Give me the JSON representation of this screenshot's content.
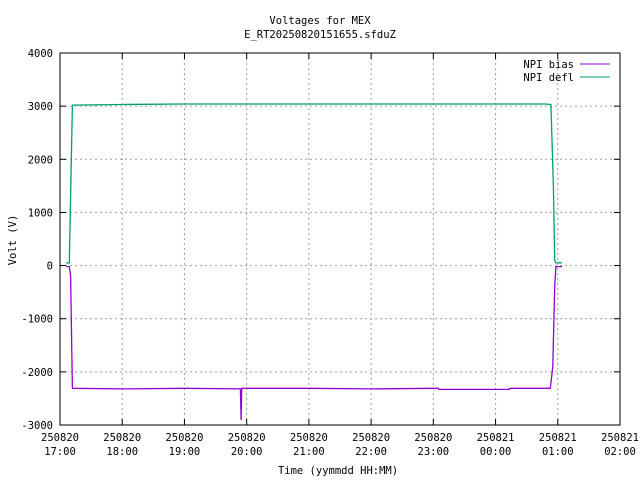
{
  "chart_data": {
    "type": "line",
    "title": "Voltages for MEX",
    "subtitle": "E_RT20250820151655.sfduZ",
    "xlabel": "Time (yymmdd HH:MM)",
    "ylabel": "Volt (V)",
    "grid": true,
    "legend_position": "top-right",
    "x_unit": "hours since 250820 17:00",
    "xlim": [
      0,
      9
    ],
    "ylim": [
      -3000,
      4000
    ],
    "x_ticks": [
      {
        "x": 0,
        "date": "250820",
        "time": "17:00"
      },
      {
        "x": 1,
        "date": "250820",
        "time": "18:00"
      },
      {
        "x": 2,
        "date": "250820",
        "time": "19:00"
      },
      {
        "x": 3,
        "date": "250820",
        "time": "20:00"
      },
      {
        "x": 4,
        "date": "250820",
        "time": "21:00"
      },
      {
        "x": 5,
        "date": "250820",
        "time": "22:00"
      },
      {
        "x": 6,
        "date": "250820",
        "time": "23:00"
      },
      {
        "x": 7,
        "date": "250821",
        "time": "00:00"
      },
      {
        "x": 8,
        "date": "250821",
        "time": "01:00"
      },
      {
        "x": 9,
        "date": "250821",
        "time": "02:00"
      }
    ],
    "y_ticks": [
      -3000,
      -2000,
      -1000,
      0,
      1000,
      2000,
      3000,
      4000
    ],
    "series": [
      {
        "name": "NPI bias",
        "color": "#9400d3",
        "points": [
          [
            0.1,
            -20
          ],
          [
            0.15,
            -20
          ],
          [
            0.17,
            -200
          ],
          [
            0.2,
            -2310
          ],
          [
            1.0,
            -2320
          ],
          [
            2.0,
            -2310
          ],
          [
            2.9,
            -2320
          ],
          [
            2.91,
            -2900
          ],
          [
            2.92,
            -2310
          ],
          [
            4.0,
            -2310
          ],
          [
            5.0,
            -2320
          ],
          [
            6.0,
            -2310
          ],
          [
            6.08,
            -2310
          ],
          [
            6.09,
            -2330
          ],
          [
            7.0,
            -2330
          ],
          [
            7.22,
            -2330
          ],
          [
            7.23,
            -2310
          ],
          [
            7.8,
            -2310
          ],
          [
            7.88,
            -2310
          ],
          [
            7.92,
            -1900
          ],
          [
            7.95,
            -400
          ],
          [
            7.97,
            -20
          ],
          [
            8.07,
            -20
          ]
        ]
      },
      {
        "name": "NPI defl",
        "color": "#009e73",
        "points": [
          [
            0.1,
            50
          ],
          [
            0.15,
            50
          ],
          [
            0.2,
            3020
          ],
          [
            1.0,
            3030
          ],
          [
            2.0,
            3040
          ],
          [
            3.0,
            3040
          ],
          [
            4.0,
            3040
          ],
          [
            5.0,
            3040
          ],
          [
            6.0,
            3040
          ],
          [
            7.0,
            3040
          ],
          [
            7.8,
            3040
          ],
          [
            7.89,
            3030
          ],
          [
            7.93,
            1500
          ],
          [
            7.95,
            100
          ],
          [
            7.97,
            50
          ],
          [
            8.07,
            50
          ]
        ]
      }
    ]
  }
}
